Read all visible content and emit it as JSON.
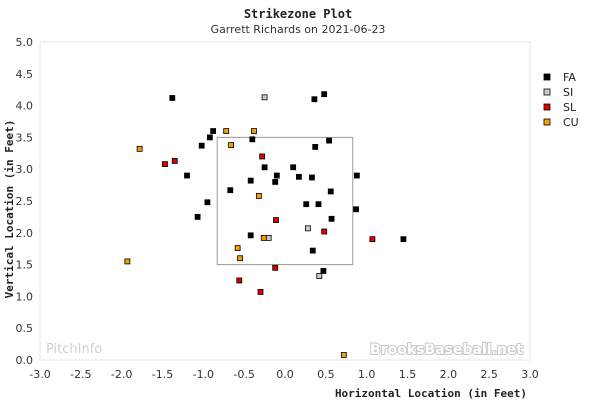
{
  "chart_data": {
    "type": "scatter",
    "title": "Strikezone Plot",
    "subtitle": "Garrett Richards on 2021-06-23",
    "xlabel": "Horizontal Location (in Feet)",
    "ylabel": "Vertical Location (in Feet)",
    "xlim": [
      -3.0,
      3.0
    ],
    "ylim": [
      0.0,
      5.0
    ],
    "x_ticks": [
      "-3.0",
      "-2.5",
      "-2.0",
      "-1.5",
      "-1.0",
      "-0.5",
      "0.0",
      "0.5",
      "1.0",
      "1.5",
      "2.0",
      "2.5",
      "3.0"
    ],
    "y_ticks": [
      "0.0",
      "0.5",
      "1.0",
      "1.5",
      "2.0",
      "2.5",
      "3.0",
      "3.5",
      "4.0",
      "4.5",
      "5.0"
    ],
    "grid": false,
    "legend_position": "right",
    "strike_zone": {
      "x": [
        -0.83,
        0.83
      ],
      "y": [
        1.5,
        3.5
      ]
    },
    "series": [
      {
        "name": "FA",
        "color": "#000000",
        "points": [
          [
            -1.38,
            4.12
          ],
          [
            0.36,
            4.1
          ],
          [
            0.48,
            4.18
          ],
          [
            -0.88,
            3.6
          ],
          [
            -0.92,
            3.5
          ],
          [
            -1.02,
            3.37
          ],
          [
            -0.4,
            3.47
          ],
          [
            0.37,
            3.35
          ],
          [
            0.54,
            3.45
          ],
          [
            -1.2,
            2.9
          ],
          [
            0.1,
            3.03
          ],
          [
            -0.25,
            3.03
          ],
          [
            0.17,
            2.88
          ],
          [
            0.33,
            2.87
          ],
          [
            0.88,
            2.9
          ],
          [
            -0.1,
            2.9
          ],
          [
            -0.12,
            2.8
          ],
          [
            -0.42,
            2.82
          ],
          [
            -0.67,
            2.67
          ],
          [
            0.56,
            2.65
          ],
          [
            -0.95,
            2.48
          ],
          [
            0.26,
            2.45
          ],
          [
            0.41,
            2.45
          ],
          [
            0.87,
            2.37
          ],
          [
            -1.07,
            2.25
          ],
          [
            0.57,
            2.22
          ],
          [
            -0.42,
            1.96
          ],
          [
            0.34,
            1.72
          ],
          [
            1.45,
            1.9
          ],
          [
            0.47,
            1.4
          ]
        ]
      },
      {
        "name": "SI",
        "color": "#cccccc",
        "points": [
          [
            -0.25,
            4.13
          ],
          [
            0.28,
            2.07
          ],
          [
            -0.2,
            1.92
          ],
          [
            0.42,
            1.32
          ]
        ]
      },
      {
        "name": "SL",
        "color": "#dd0000",
        "points": [
          [
            -1.47,
            3.08
          ],
          [
            -1.35,
            3.13
          ],
          [
            -0.28,
            3.2
          ],
          [
            -0.11,
            2.2
          ],
          [
            0.48,
            2.02
          ],
          [
            1.07,
            1.9
          ],
          [
            -0.12,
            1.45
          ],
          [
            -0.56,
            1.25
          ],
          [
            -0.3,
            1.07
          ]
        ]
      },
      {
        "name": "CU",
        "color": "#f5a000",
        "points": [
          [
            -1.78,
            3.32
          ],
          [
            -0.72,
            3.6
          ],
          [
            -0.38,
            3.6
          ],
          [
            -0.66,
            3.38
          ],
          [
            -0.32,
            2.58
          ],
          [
            -0.26,
            1.92
          ],
          [
            -0.58,
            1.76
          ],
          [
            -0.55,
            1.6
          ],
          [
            -1.93,
            1.55
          ],
          [
            0.72,
            0.08
          ]
        ]
      }
    ]
  },
  "watermarks": {
    "left": "PitchInfo",
    "right": "BrooksBaseball.net"
  }
}
